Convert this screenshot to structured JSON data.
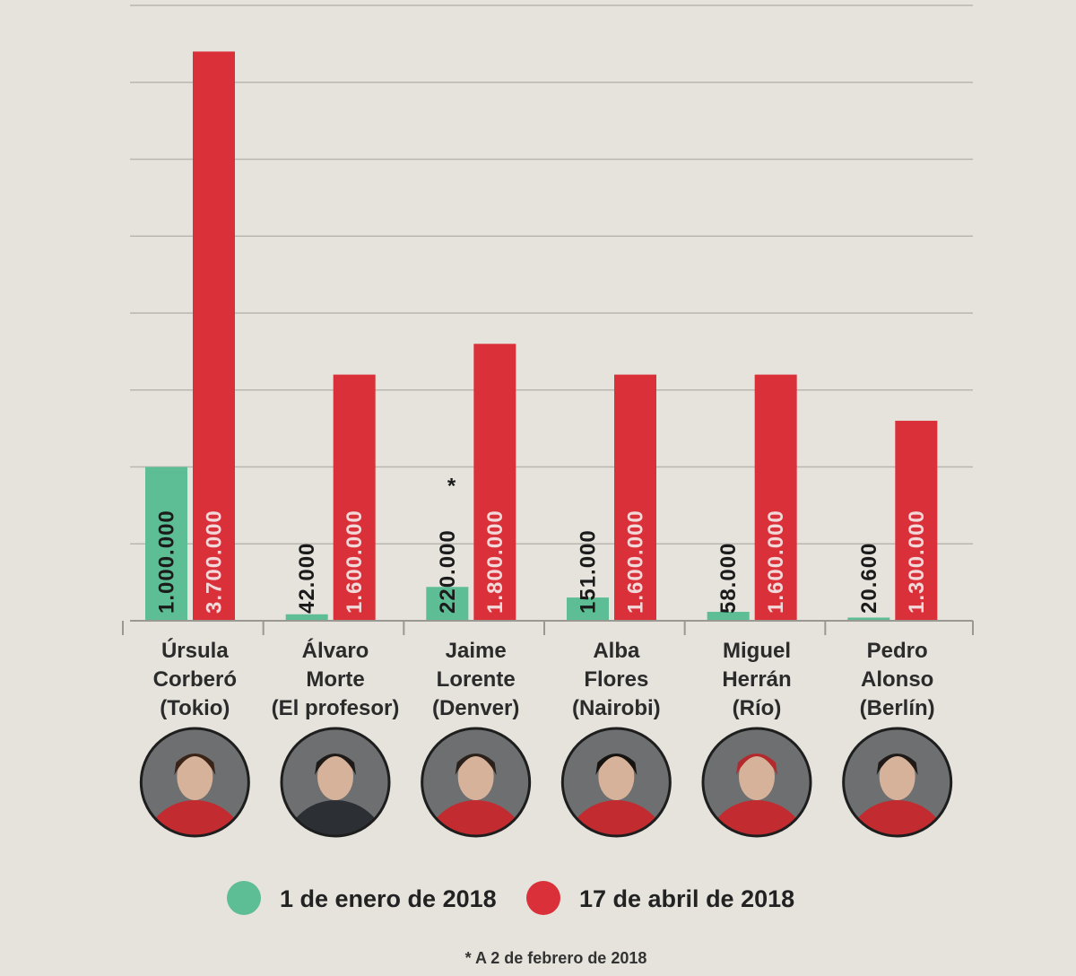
{
  "chart_data": {
    "type": "bar",
    "categories": [
      [
        "Úrsula",
        "Corberó",
        "(Tokio)"
      ],
      [
        "Álvaro",
        "Morte",
        "(El profesor)"
      ],
      [
        "Jaime",
        "Lorente",
        "(Denver)"
      ],
      [
        "Alba",
        "Flores",
        "(Nairobi)"
      ],
      [
        "Miguel",
        "Herrán",
        "(Río)"
      ],
      [
        "Pedro",
        "Alonso",
        "(Berlín)"
      ]
    ],
    "series": [
      {
        "name": "1 de enero de 2018",
        "color": "#5dbd94",
        "values": [
          1000000,
          42000,
          220000,
          151000,
          58000,
          20600
        ],
        "labels": [
          "1.000.000",
          "42.000",
          "220.000",
          "151.000",
          "58.000",
          "20.600"
        ],
        "annotations": [
          "",
          "",
          "*",
          "",
          "",
          ""
        ]
      },
      {
        "name": "17 de abril de 2018",
        "color": "#d9303a",
        "values": [
          3700000,
          1600000,
          1800000,
          1600000,
          1600000,
          1300000
        ],
        "labels": [
          "3.700.000",
          "1.600.000",
          "1.800.000",
          "1.600.000",
          "1.600.000",
          "1.300.000"
        ],
        "annotations": [
          "",
          "",
          "",
          "",
          "",
          ""
        ]
      }
    ],
    "ylim": [
      0,
      4000000
    ],
    "grid": true,
    "legend_position": "bottom",
    "footnote": "* A 2 de febrero de 2018"
  },
  "avatars": [
    {
      "icon": "portrait-icon",
      "hair": "#3a2418"
    },
    {
      "icon": "portrait-icon",
      "hair": "#1d1a18"
    },
    {
      "icon": "portrait-icon",
      "hair": "#2a211b"
    },
    {
      "icon": "portrait-icon",
      "hair": "#161311"
    },
    {
      "icon": "portrait-icon",
      "hair": "#b22a2e"
    },
    {
      "icon": "portrait-icon",
      "hair": "#1f1a17"
    }
  ]
}
